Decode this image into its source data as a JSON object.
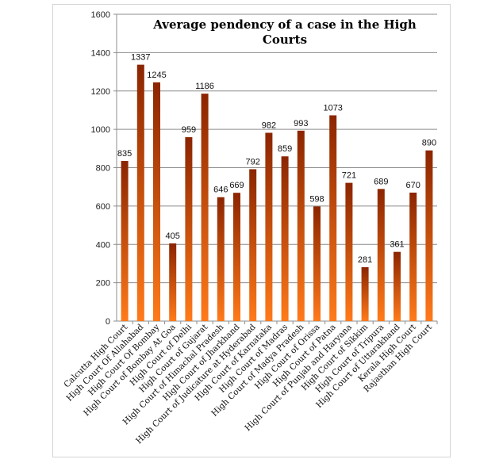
{
  "chart_data": {
    "type": "bar",
    "title": "Average pendency of a case in the High Courts",
    "title_lines": [
      "Average pendency of a case in the High",
      "Courts"
    ],
    "xlabel": "",
    "ylabel": "",
    "ylim": [
      0,
      1600
    ],
    "yticks": [
      0,
      200,
      400,
      600,
      800,
      1000,
      1200,
      1400,
      1600
    ],
    "grid": true,
    "legend": "none",
    "bar_color_top": "#8b2500",
    "bar_color_bottom": "#ff7a1a",
    "categories": [
      "Calcutta High Court",
      "High Court Of Allahabad",
      "High Court Of Bombay",
      "High Court of Bombay At Goa",
      "High Court of Delhi",
      "High Court of Gujarat",
      "High Court of Himachal Pradesh",
      "High Court of Jharkhand",
      "High Court of Judicature at Hyderabad",
      "High Court of Karnataka",
      "High Court of Madras",
      "High Court of Madya Pradesh",
      "High Court of Orissa",
      "High Court of Patna",
      "High Court of Punjab and Haryana",
      "High Court of Sikkim",
      "High Court of Tripura",
      "High Court of Uttarakhand",
      "Kerala High Court",
      "Rajasthan High Court"
    ],
    "values": [
      835,
      1337,
      1245,
      405,
      959,
      1186,
      646,
      669,
      792,
      982,
      859,
      993,
      598,
      1073,
      721,
      281,
      689,
      361,
      670,
      890
    ]
  }
}
